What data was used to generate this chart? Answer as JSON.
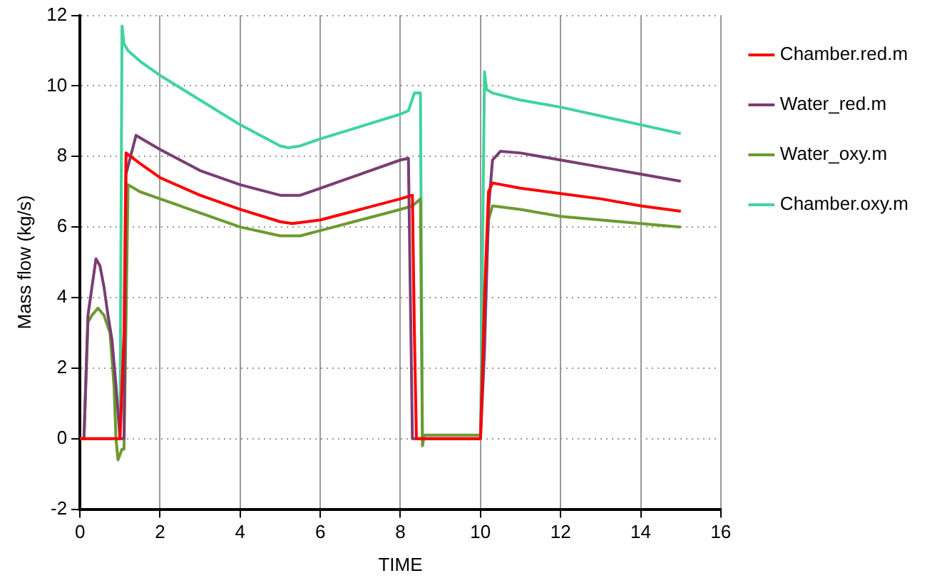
{
  "chart_data": {
    "type": "line",
    "xlabel": "TIME",
    "ylabel": "Mass flow (kg/s)",
    "xlim": [
      0,
      16
    ],
    "xticks": [
      0,
      2,
      4,
      6,
      8,
      10,
      12,
      14,
      16
    ],
    "ylim": [
      -2,
      12
    ],
    "yticks": [
      -2,
      0,
      2,
      4,
      6,
      8,
      10,
      12
    ],
    "grid": true,
    "legend": "right",
    "marker": "none",
    "line_style": "solid",
    "series": [
      {
        "name": "Chamber.red.m",
        "color": "#ff0000",
        "x": [
          0,
          1.0,
          1.1,
          1.15,
          1.5,
          2,
          3,
          4,
          5,
          5.3,
          6,
          7,
          8,
          8.3,
          8.35,
          8.4,
          8.6,
          10.0,
          10.1,
          10.2,
          10.3,
          11,
          12,
          13,
          14,
          15
        ],
        "values": [
          0,
          0,
          3,
          8.1,
          7.8,
          7.4,
          6.9,
          6.5,
          6.15,
          6.1,
          6.2,
          6.5,
          6.8,
          6.9,
          3,
          0,
          0,
          0,
          4,
          7.0,
          7.25,
          7.1,
          6.95,
          6.8,
          6.6,
          6.45
        ]
      },
      {
        "name": "Water_red.m",
        "color": "#7b3c73",
        "x": [
          0,
          0.1,
          0.2,
          0.3,
          0.4,
          0.5,
          0.6,
          0.7,
          0.8,
          0.9,
          1.0,
          1.1,
          1.15,
          1.4,
          2,
          3,
          4,
          5,
          5.5,
          6,
          7,
          8,
          8.2,
          8.3,
          8.4,
          8.6,
          10.0,
          10.1,
          10.2,
          10.3,
          10.5,
          11,
          12,
          13,
          14,
          15
        ],
        "values": [
          0,
          0,
          3.5,
          4.3,
          5.1,
          4.9,
          4.3,
          3.5,
          2.8,
          1.5,
          0,
          0,
          7.5,
          8.6,
          8.2,
          7.6,
          7.2,
          6.9,
          6.9,
          7.1,
          7.5,
          7.9,
          7.95,
          0,
          0,
          0,
          0,
          2.5,
          6.5,
          7.9,
          8.15,
          8.1,
          7.9,
          7.7,
          7.5,
          7.3
        ]
      },
      {
        "name": "Water_oxy.m",
        "color": "#6b9a2f",
        "x": [
          0,
          0.1,
          0.2,
          0.3,
          0.45,
          0.6,
          0.75,
          0.85,
          0.9,
          0.95,
          1.05,
          1.1,
          1.15,
          1.2,
          1.5,
          2,
          3,
          4,
          5,
          5.5,
          6,
          7,
          8,
          8.3,
          8.5,
          8.55,
          8.6,
          10.0,
          10.1,
          10.2,
          10.3,
          11,
          12,
          13,
          14,
          15
        ],
        "values": [
          0,
          0,
          3.3,
          3.5,
          3.7,
          3.5,
          3.0,
          1.5,
          0,
          -0.6,
          -0.3,
          -0.3,
          3.3,
          7.2,
          7.0,
          6.8,
          6.4,
          6.0,
          5.75,
          5.75,
          5.9,
          6.2,
          6.5,
          6.6,
          6.8,
          -0.2,
          0.1,
          0.1,
          3.5,
          6.2,
          6.6,
          6.5,
          6.3,
          6.2,
          6.1,
          6.0
        ]
      },
      {
        "name": "Chamber.oxy.m",
        "color": "#3fd49b",
        "x": [
          0,
          1.0,
          1.05,
          1.1,
          1.2,
          1.5,
          2,
          3,
          4,
          5,
          5.2,
          5.5,
          6,
          7,
          8,
          8.2,
          8.35,
          8.5,
          8.55,
          8.6,
          10.0,
          10.1,
          10.15,
          10.3,
          11,
          12,
          13,
          14,
          15
        ],
        "values": [
          0,
          0,
          11.7,
          11.2,
          11.0,
          10.7,
          10.3,
          9.6,
          8.9,
          8.3,
          8.25,
          8.3,
          8.5,
          8.85,
          9.2,
          9.3,
          9.8,
          9.8,
          0,
          0,
          0,
          10.4,
          9.9,
          9.8,
          9.6,
          9.4,
          9.15,
          8.9,
          8.65
        ]
      }
    ]
  }
}
